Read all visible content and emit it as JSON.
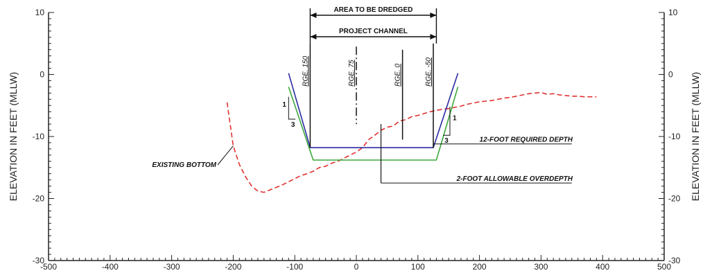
{
  "chart_data": {
    "type": "line",
    "xlim": [
      -500,
      500
    ],
    "ylim": [
      -30,
      10
    ],
    "x_ticks": [
      -500,
      -400,
      -300,
      -200,
      -100,
      0,
      100,
      200,
      300,
      400,
      500
    ],
    "x_tick_labels": [
      "-500",
      "-400",
      "-300",
      "-200",
      "-100",
      "0",
      "100",
      "200",
      "300",
      "400",
      "500"
    ],
    "y_ticks": [
      10,
      0,
      -10,
      -20,
      -30
    ],
    "y_tick_labels": [
      "10",
      "0",
      "-10",
      "-20",
      "-30"
    ],
    "ylabel_left": "ELEVATION IN FEET (MLLW)",
    "ylabel_right": "ELEVATION IN FEET (MLLW)",
    "series": [
      {
        "name": "EXISTING BOTTOM",
        "color": "#e03030",
        "style": "dashed",
        "x": [
          -210,
          -205,
          -200,
          -195,
          -190,
          -180,
          -170,
          -160,
          -150,
          -140,
          -130,
          -120,
          -110,
          -100,
          -90,
          -80,
          -70,
          -60,
          -50,
          -40,
          -30,
          -20,
          -10,
          0,
          10,
          20,
          30,
          40,
          50,
          60,
          70,
          80,
          90,
          100,
          110,
          120,
          130,
          140,
          150,
          160,
          170,
          180,
          190,
          200,
          210,
          220,
          230,
          240,
          250,
          260,
          270,
          280,
          290,
          300,
          310,
          320,
          330,
          340,
          350,
          360,
          370,
          380,
          390
        ],
        "y": [
          -4.5,
          -8,
          -11.5,
          -13,
          -14.5,
          -16.5,
          -18,
          -18.8,
          -19,
          -18.6,
          -18.2,
          -17.8,
          -17.3,
          -16.8,
          -16.3,
          -16,
          -15.6,
          -15,
          -14.8,
          -14.3,
          -14,
          -13.5,
          -13,
          -12.5,
          -11.8,
          -10.5,
          -9.8,
          -9,
          -8.5,
          -8.3,
          -7.5,
          -7.3,
          -6.8,
          -6.6,
          -6.3,
          -6,
          -5.8,
          -5.6,
          -5.5,
          -5.3,
          -5.1,
          -4.8,
          -4.6,
          -4.4,
          -4.3,
          -4.2,
          -4,
          -3.8,
          -3.7,
          -3.5,
          -3.3,
          -3.1,
          -3,
          -2.9,
          -3.2,
          -3.1,
          -3.3,
          -3.4,
          -3.5,
          -3.5,
          -3.6,
          -3.6,
          -3.6
        ]
      },
      {
        "name": "12-FOOT REQUIRED DEPTH",
        "color": "#2a2aa0",
        "style": "solid",
        "x": [
          -110,
          -75,
          125,
          165
        ],
        "y": [
          0.2,
          -11.8,
          -11.8,
          0.2
        ]
      },
      {
        "name": "2-FOOT ALLOWABLE OVERDEPTH",
        "color": "#3aa83a",
        "style": "solid",
        "x": [
          -110,
          -70,
          130,
          165
        ],
        "y": [
          -2,
          -13.8,
          -13.8,
          -2
        ]
      }
    ],
    "annotations": {
      "area_to_be_dredged": "AREA TO BE DREDGED",
      "project_channel": "PROJECT CHANNEL",
      "existing_bottom": "EXISTING BOTTOM",
      "required_depth": "12-FOOT REQUIRED DEPTH",
      "allowable_overdepth": "2-FOOT ALLOWABLE OVERDEPTH",
      "slope_rise": "1",
      "slope_run": "3"
    },
    "range_lines": [
      {
        "label": "RGE. 150",
        "x": -75
      },
      {
        "label": "RGE. 75",
        "x": 0
      },
      {
        "label": "RGE. 0",
        "x": 75
      },
      {
        "label": "RGE. -50",
        "x": 125
      }
    ],
    "dredge_area_x": [
      -75,
      130
    ],
    "project_channel_x": [
      -75,
      130
    ]
  }
}
